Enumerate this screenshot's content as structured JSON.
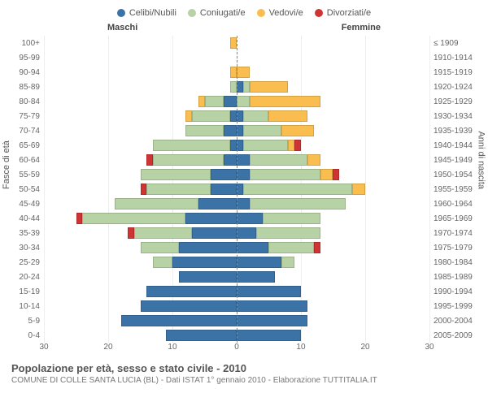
{
  "legend": [
    {
      "label": "Celibi/Nubili",
      "color": "#3b73a6"
    },
    {
      "label": "Coniugati/e",
      "color": "#b7d2a4"
    },
    {
      "label": "Vedovi/e",
      "color": "#f9be4f"
    },
    {
      "label": "Divorziati/e",
      "color": "#cf3434"
    }
  ],
  "header_male": "Maschi",
  "header_female": "Femmine",
  "ylabel_left": "Fasce di età",
  "ylabel_right": "Anni di nascita",
  "x_ticks": [
    30,
    20,
    10,
    0,
    10,
    20,
    30
  ],
  "x_max": 30,
  "title": "Popolazione per età, sesso e stato civile - 2010",
  "subtitle": "COMUNE DI COLLE SANTA LUCIA (BL) - Dati ISTAT 1° gennaio 2010 - Elaborazione TUTTITALIA.IT",
  "background_color": "#ffffff",
  "grid_color": "#eeeeee",
  "centerline_color": "#888888",
  "rows": [
    {
      "age": "100+",
      "birth": "≤ 1909",
      "m": [
        0,
        0,
        1,
        0
      ],
      "f": [
        0,
        0,
        0,
        0
      ]
    },
    {
      "age": "95-99",
      "birth": "1910-1914",
      "m": [
        0,
        0,
        0,
        0
      ],
      "f": [
        0,
        0,
        0,
        0
      ]
    },
    {
      "age": "90-94",
      "birth": "1915-1919",
      "m": [
        0,
        0,
        1,
        0
      ],
      "f": [
        0,
        0,
        2,
        0
      ]
    },
    {
      "age": "85-89",
      "birth": "1920-1924",
      "m": [
        0,
        1,
        0,
        0
      ],
      "f": [
        1,
        1,
        6,
        0
      ]
    },
    {
      "age": "80-84",
      "birth": "1925-1929",
      "m": [
        2,
        3,
        1,
        0
      ],
      "f": [
        0,
        2,
        11,
        0
      ]
    },
    {
      "age": "75-79",
      "birth": "1930-1934",
      "m": [
        1,
        6,
        1,
        0
      ],
      "f": [
        1,
        4,
        6,
        0
      ]
    },
    {
      "age": "70-74",
      "birth": "1935-1939",
      "m": [
        2,
        6,
        0,
        0
      ],
      "f": [
        1,
        6,
        5,
        0
      ]
    },
    {
      "age": "65-69",
      "birth": "1940-1944",
      "m": [
        1,
        12,
        0,
        0
      ],
      "f": [
        1,
        7,
        1,
        1
      ]
    },
    {
      "age": "60-64",
      "birth": "1945-1949",
      "m": [
        2,
        11,
        0,
        1
      ],
      "f": [
        2,
        9,
        2,
        0
      ]
    },
    {
      "age": "55-59",
      "birth": "1950-1954",
      "m": [
        4,
        11,
        0,
        0
      ],
      "f": [
        2,
        11,
        2,
        1
      ]
    },
    {
      "age": "50-54",
      "birth": "1955-1959",
      "m": [
        4,
        10,
        0,
        1
      ],
      "f": [
        1,
        17,
        2,
        0
      ]
    },
    {
      "age": "45-49",
      "birth": "1960-1964",
      "m": [
        6,
        13,
        0,
        0
      ],
      "f": [
        2,
        15,
        0,
        0
      ]
    },
    {
      "age": "40-44",
      "birth": "1965-1969",
      "m": [
        8,
        16,
        0,
        1
      ],
      "f": [
        4,
        9,
        0,
        0
      ]
    },
    {
      "age": "35-39",
      "birth": "1970-1974",
      "m": [
        7,
        9,
        0,
        1
      ],
      "f": [
        3,
        10,
        0,
        0
      ]
    },
    {
      "age": "30-34",
      "birth": "1975-1979",
      "m": [
        9,
        6,
        0,
        0
      ],
      "f": [
        5,
        7,
        0,
        1
      ]
    },
    {
      "age": "25-29",
      "birth": "1980-1984",
      "m": [
        10,
        3,
        0,
        0
      ],
      "f": [
        7,
        2,
        0,
        0
      ]
    },
    {
      "age": "20-24",
      "birth": "1985-1989",
      "m": [
        9,
        0,
        0,
        0
      ],
      "f": [
        6,
        0,
        0,
        0
      ]
    },
    {
      "age": "15-19",
      "birth": "1990-1994",
      "m": [
        14,
        0,
        0,
        0
      ],
      "f": [
        10,
        0,
        0,
        0
      ]
    },
    {
      "age": "10-14",
      "birth": "1995-1999",
      "m": [
        15,
        0,
        0,
        0
      ],
      "f": [
        11,
        0,
        0,
        0
      ]
    },
    {
      "age": "5-9",
      "birth": "2000-2004",
      "m": [
        18,
        0,
        0,
        0
      ],
      "f": [
        11,
        0,
        0,
        0
      ]
    },
    {
      "age": "0-4",
      "birth": "2005-2009",
      "m": [
        11,
        0,
        0,
        0
      ],
      "f": [
        10,
        0,
        0,
        0
      ]
    }
  ]
}
